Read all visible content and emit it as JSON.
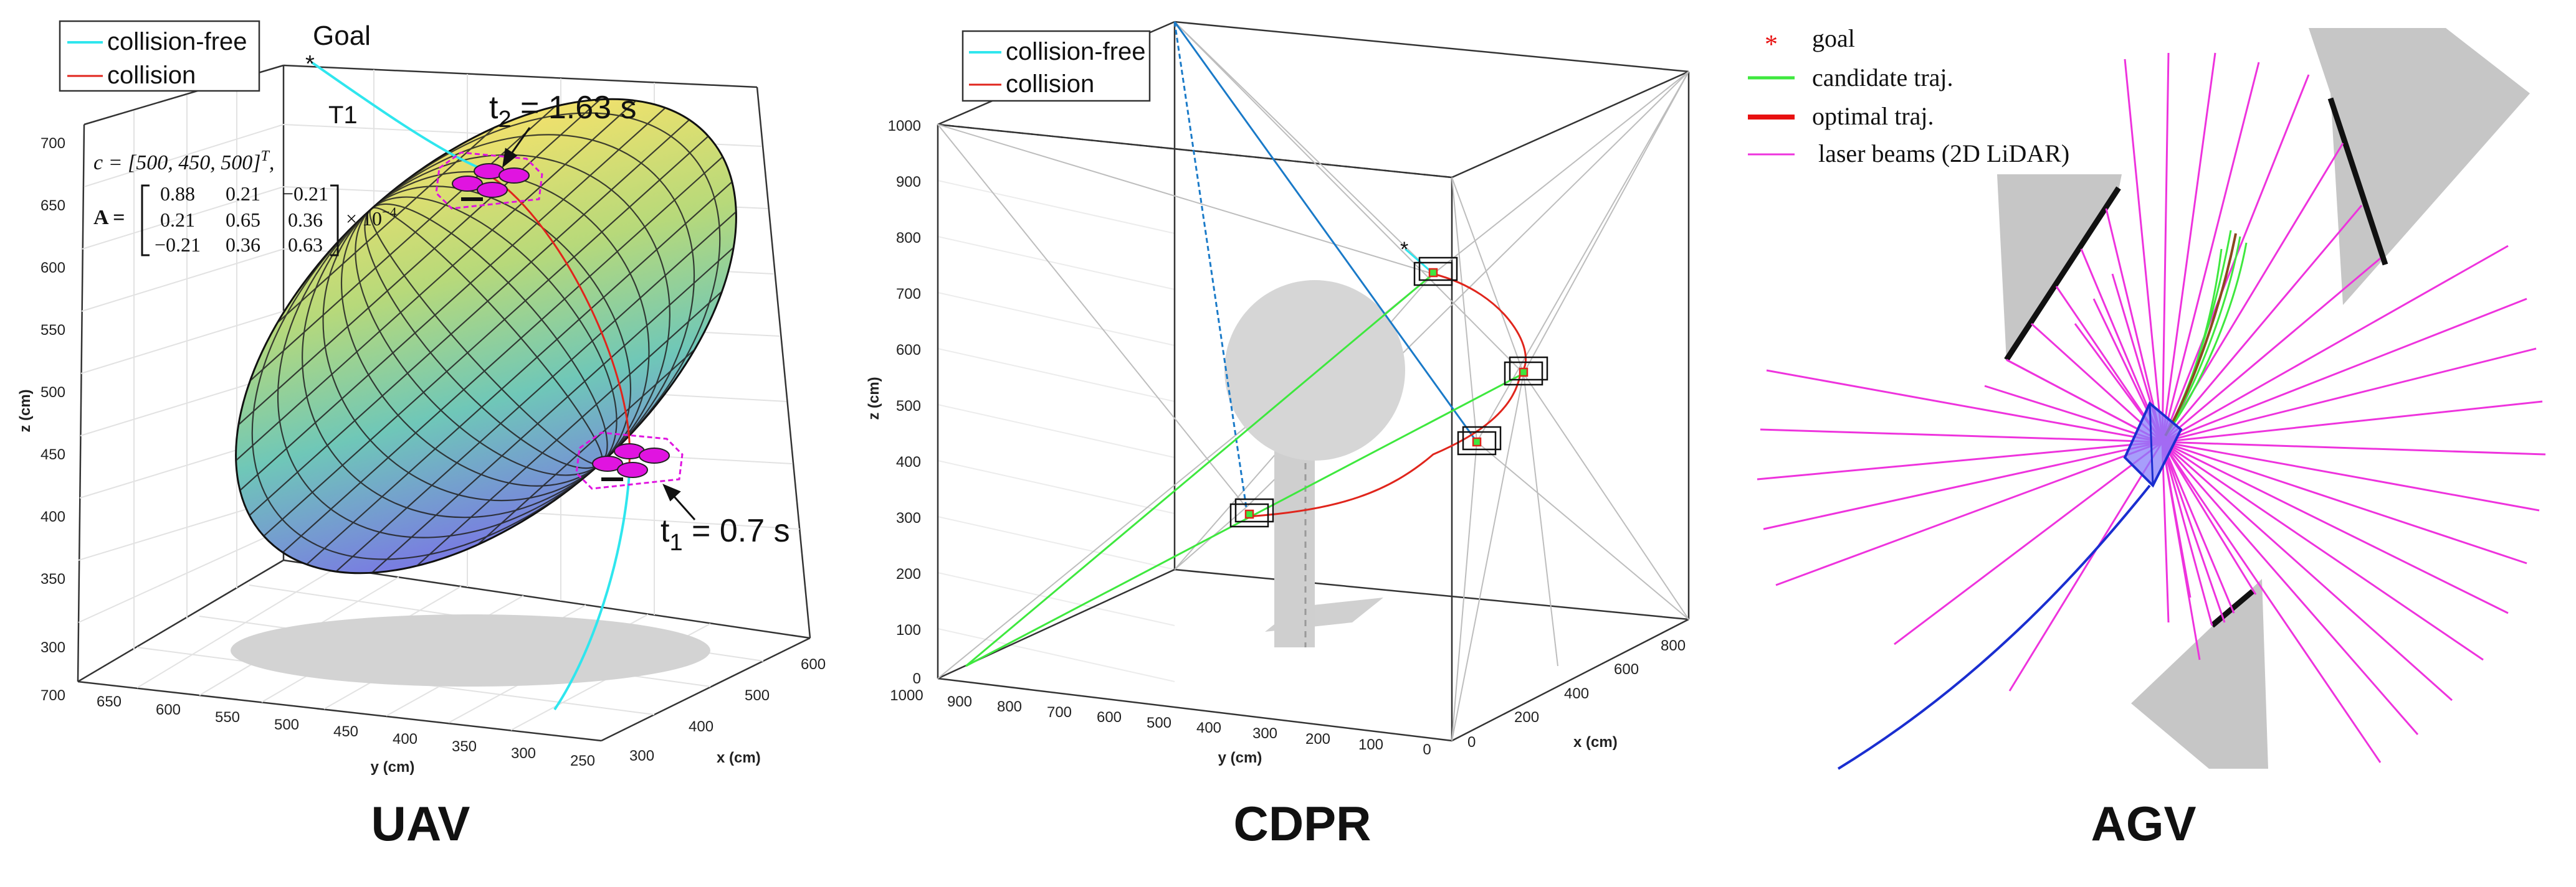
{
  "uav": {
    "caption": "UAV",
    "legend": [
      "collision-free",
      "collision"
    ],
    "goal_label": "Goal",
    "goal_marker": "*",
    "t1_label": "T1",
    "t2_label": "t",
    "t2_sub": "2",
    "t2_value": " = 1.63 s",
    "t1_time_label": "t",
    "t1_time_sub": "1",
    "t1_time_value": " = 0.7 s",
    "eq_c": "c = [500, 450, 500]",
    "eq_c_sup": "T",
    "eq_c_tail": ",",
    "eq_A_label": "A =",
    "eq_A_rows": [
      [
        "0.88",
        "0.21",
        "−0.21"
      ],
      [
        "0.21",
        "0.65",
        "0.36"
      ],
      [
        "−0.21",
        "0.36",
        "0.63"
      ]
    ],
    "eq_A_scale": "× 10",
    "eq_A_scale_sup": "−4",
    "z_label": "z (cm)",
    "y_label": "y (cm)",
    "x_label": "x (cm)",
    "z_ticks": [
      "700",
      "650",
      "600",
      "550",
      "500",
      "450",
      "400",
      "350",
      "300"
    ],
    "y_ticks": [
      "700",
      "650",
      "600",
      "550",
      "500",
      "450",
      "400",
      "350",
      "300",
      "250"
    ],
    "x_ticks": [
      "300",
      "400",
      "500",
      "600"
    ]
  },
  "cdpr": {
    "caption": "CDPR",
    "legend": [
      "collision-free",
      "collision"
    ],
    "goal_marker": "*",
    "z_label": "z (cm)",
    "y_label": "y (cm)",
    "x_label": "x (cm)",
    "z_ticks": [
      "1000",
      "900",
      "800",
      "700",
      "600",
      "500",
      "400",
      "300",
      "200",
      "100",
      "0"
    ],
    "y_ticks": [
      "1000",
      "900",
      "800",
      "700",
      "600",
      "500",
      "400",
      "300",
      "200",
      "100",
      "0"
    ],
    "x_ticks": [
      "0",
      "200",
      "400",
      "600",
      "800"
    ]
  },
  "agv": {
    "caption": "AGV",
    "legend": [
      {
        "marker": "*",
        "label": "goal"
      },
      {
        "marker": "line",
        "label": "candidate traj."
      },
      {
        "marker": "line",
        "label": "optimal traj."
      },
      {
        "marker": "line",
        "label": "laser beams (2D LiDAR)"
      }
    ]
  },
  "colors": {
    "collision_free": "#2fe6ee",
    "collision": "#e0251c",
    "candidate": "#3ee83e",
    "optimal": "#e81010",
    "laser": "#ee33dd",
    "drone": "#e014e0",
    "obstacle": "#c8c8c8",
    "agv_path": "#1a2ed0",
    "cable": "#1a7ac8"
  }
}
